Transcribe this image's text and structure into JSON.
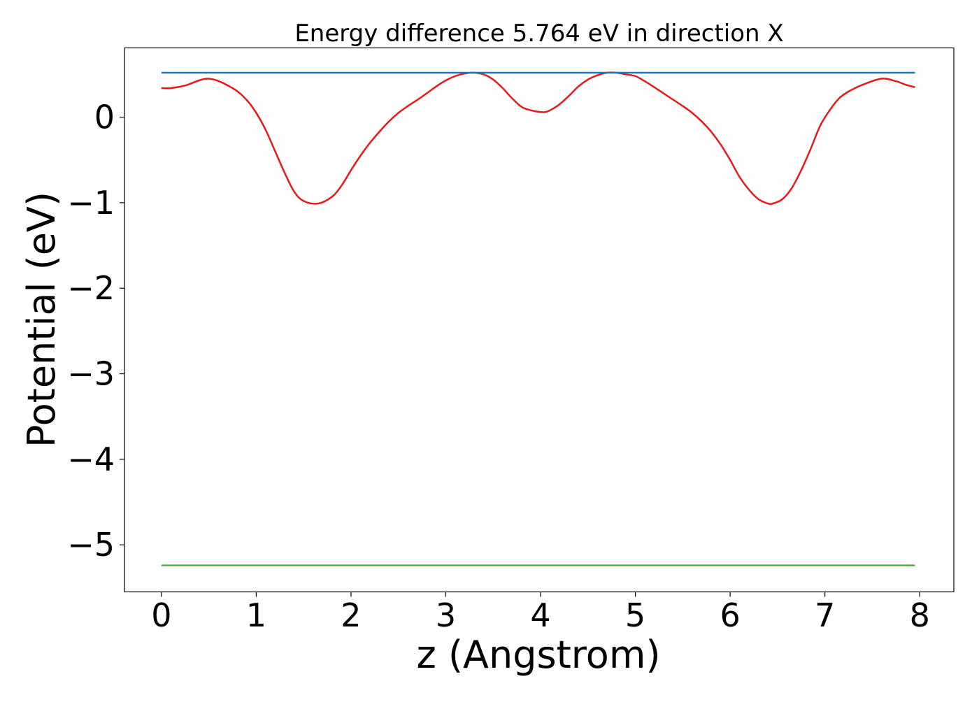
{
  "chart_data": {
    "type": "line",
    "title": "Energy difference 5.764 eV in direction X",
    "xlabel": "z (Angstrom)",
    "ylabel": "Potential (eV)",
    "xlim": [
      -0.39,
      8.36
    ],
    "ylim": [
      -5.55,
      0.81
    ],
    "x_ticks": [
      0,
      1,
      2,
      3,
      4,
      5,
      6,
      7,
      8
    ],
    "x_tick_labels": [
      "0",
      "1",
      "2",
      "3",
      "4",
      "5",
      "6",
      "7",
      "8"
    ],
    "y_ticks": [
      0,
      -1,
      -2,
      -3,
      -4,
      -5
    ],
    "y_tick_labels": [
      "0",
      "−1",
      "−2",
      "−3",
      "−4",
      "−5"
    ],
    "grid": false,
    "legend": "none",
    "series": [
      {
        "color": "#e41a1c",
        "x": [
          0.0,
          0.1,
          0.25,
          0.5,
          0.75,
          0.9,
          1.0,
          1.1,
          1.2,
          1.3,
          1.4,
          1.5,
          1.65,
          1.8,
          1.9,
          2.0,
          2.1,
          2.2,
          2.3,
          2.4,
          2.5,
          2.6,
          2.75,
          2.9,
          3.0,
          3.1,
          3.2,
          3.3,
          3.4,
          3.5,
          3.6,
          3.7,
          3.8,
          3.9,
          4.0,
          4.05,
          4.1,
          4.2,
          4.3,
          4.4,
          4.5,
          4.6,
          4.7,
          4.8,
          4.9,
          5.0,
          5.1,
          5.2,
          5.35,
          5.5,
          5.6,
          5.7,
          5.8,
          5.9,
          6.0,
          6.1,
          6.2,
          6.3,
          6.4,
          6.45,
          6.55,
          6.65,
          6.75,
          6.85,
          6.95,
          7.05,
          7.15,
          7.25,
          7.4,
          7.6,
          7.75,
          7.85,
          7.95
        ],
        "y": [
          0.34,
          0.34,
          0.37,
          0.45,
          0.34,
          0.2,
          0.05,
          -0.15,
          -0.4,
          -0.65,
          -0.87,
          -0.98,
          -1.01,
          -0.93,
          -0.8,
          -0.62,
          -0.45,
          -0.3,
          -0.17,
          -0.05,
          0.05,
          0.13,
          0.24,
          0.36,
          0.43,
          0.48,
          0.51,
          0.52,
          0.5,
          0.44,
          0.34,
          0.22,
          0.12,
          0.08,
          0.06,
          0.06,
          0.08,
          0.15,
          0.25,
          0.36,
          0.44,
          0.49,
          0.52,
          0.52,
          0.5,
          0.48,
          0.42,
          0.35,
          0.24,
          0.13,
          0.05,
          -0.05,
          -0.17,
          -0.32,
          -0.5,
          -0.7,
          -0.85,
          -0.96,
          -1.01,
          -1.01,
          -0.96,
          -0.83,
          -0.62,
          -0.37,
          -0.1,
          0.08,
          0.22,
          0.3,
          0.38,
          0.45,
          0.42,
          0.38,
          0.35
        ]
      },
      {
        "color": "#1f77b4",
        "x": [
          0.0,
          7.95
        ],
        "y": [
          0.52,
          0.52
        ]
      },
      {
        "color": "#4daf4a",
        "x": [
          0.0,
          7.95
        ],
        "y": [
          -5.24,
          -5.24
        ]
      }
    ]
  }
}
